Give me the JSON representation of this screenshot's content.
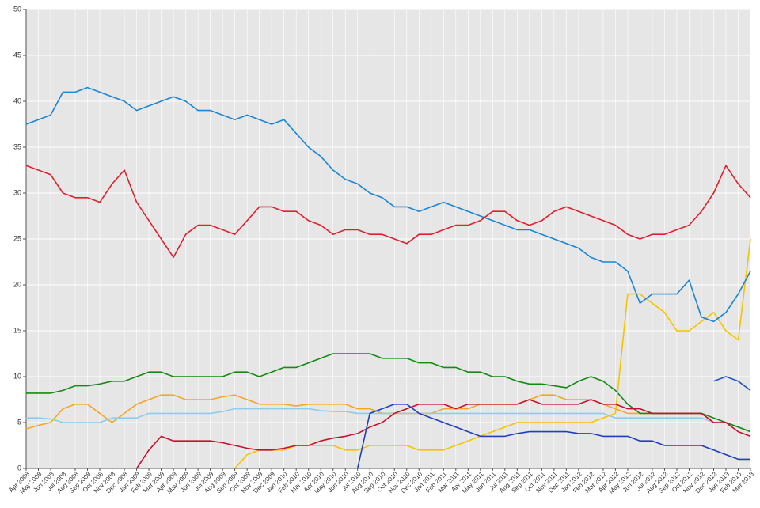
{
  "chart_data": {
    "type": "line",
    "categories": [
      "Apr 2008",
      "May 2008",
      "Jun 2008",
      "Jul 2008",
      "Aug 2008",
      "Sep 2008",
      "Oct 2008",
      "Nov 2008",
      "Dec 2008",
      "Jan 2009",
      "Feb 2009",
      "Mar 2009",
      "Apr 2009",
      "May 2009",
      "Jun 2009",
      "Jul 2009",
      "Aug 2009",
      "Sep 2009",
      "Oct 2009",
      "Nov 2009",
      "Dec 2009",
      "Jan 2010",
      "Feb 2010",
      "Mar 2010",
      "Apr 2010",
      "May 2010",
      "Jun 2010",
      "Jul 2010",
      "Aug 2010",
      "Sep 2010",
      "Oct 2010",
      "Nov 2010",
      "Dec 2010",
      "Jan 2011",
      "Feb 2011",
      "Mar 2011",
      "Apr 2011",
      "May 2011",
      "Jun 2011",
      "Jul 2011",
      "Aug 2011",
      "Sep 2011",
      "Oct 2011",
      "Nov 2011",
      "Dec 2011",
      "Jan 2012",
      "Feb 2012",
      "Mar 2012",
      "Apr 2012",
      "May 2012",
      "Jun 2012",
      "Jul 2012",
      "Aug 2012",
      "Sep 2012",
      "Oct 2012",
      "Nov 2012",
      "Dec 2012",
      "Jan 2013",
      "Feb 2013",
      "Mar 2013"
    ],
    "series": [
      {
        "color": "#f5a623",
        "values": [
          4.3,
          4.7,
          5,
          6.5,
          7,
          7,
          6,
          5,
          6,
          7,
          7.5,
          8,
          8,
          7.5,
          7.5,
          7.5,
          7.8,
          8,
          7.5,
          7,
          7,
          7,
          6.8,
          7,
          7,
          7,
          7,
          6.5,
          6.5,
          6,
          6,
          6,
          6,
          6,
          6.5,
          6.5,
          6.5,
          7,
          7,
          7,
          7,
          7.5,
          8,
          8,
          7.5,
          7.5,
          7.5,
          7,
          6.5,
          6,
          6,
          6,
          6,
          6,
          6,
          6,
          5,
          5,
          4.5,
          4
        ]
      },
      {
        "color": "#8ecbef",
        "values": [
          5.5,
          5.5,
          5.4,
          5,
          5,
          5,
          5,
          5.5,
          5.5,
          5.5,
          6,
          6,
          6,
          6,
          6,
          6,
          6.2,
          6.5,
          6.5,
          6.5,
          6.5,
          6.5,
          6.5,
          6.5,
          6.3,
          6.2,
          6.2,
          6,
          6,
          6,
          6,
          6,
          6,
          6,
          6,
          6,
          6,
          6,
          6,
          6,
          6,
          6,
          6,
          6,
          6,
          6,
          6,
          6,
          5.5,
          5.5,
          5.5,
          5.5,
          5.5,
          5.5,
          5.5,
          5.5,
          5,
          5,
          4.5,
          4
        ]
      },
      {
        "color": "#138a13",
        "values": [
          8.2,
          8.2,
          8.2,
          8.5,
          9,
          9,
          9.2,
          9.5,
          9.5,
          10,
          10.5,
          10.5,
          10,
          10,
          10,
          10,
          10,
          10.5,
          10.5,
          10,
          10.5,
          11,
          11,
          11.5,
          12,
          12.5,
          12.5,
          12.5,
          12.5,
          12,
          12,
          12,
          11.5,
          11.5,
          11,
          11,
          10.5,
          10.5,
          10,
          10,
          9.5,
          9.2,
          9.2,
          9,
          8.8,
          9.5,
          10,
          9.5,
          8.5,
          7,
          6,
          6,
          6,
          6,
          6,
          6,
          5.5,
          5,
          4.5,
          4
        ]
      },
      {
        "color": "#f5c400",
        "values": [
          null,
          null,
          null,
          null,
          null,
          null,
          null,
          null,
          null,
          null,
          null,
          null,
          null,
          null,
          null,
          null,
          null,
          0,
          1.5,
          2,
          2,
          2,
          2.5,
          2.5,
          2.5,
          2.5,
          2,
          2,
          2.5,
          2.5,
          2.5,
          2.5,
          2,
          2,
          2,
          2.5,
          3,
          3.5,
          4,
          4.5,
          5,
          5,
          5,
          5,
          5,
          5,
          5,
          5.5,
          6,
          19,
          19,
          18,
          17,
          15,
          15,
          16,
          17,
          15,
          14,
          25
        ]
      },
      {
        "color": "#c8102e",
        "values": [
          null,
          null,
          null,
          null,
          null,
          null,
          null,
          null,
          null,
          0,
          2,
          3.5,
          3,
          3,
          3,
          3,
          2.8,
          2.5,
          2.2,
          2,
          2,
          2.2,
          2.5,
          2.5,
          3,
          3.3,
          3.5,
          3.8,
          4.5,
          5,
          6,
          6.5,
          7,
          7,
          7,
          6.5,
          7,
          7,
          7,
          7,
          7,
          7.5,
          7,
          7,
          7,
          7,
          7.5,
          7,
          7,
          6.5,
          6.5,
          6,
          6,
          6,
          6,
          6,
          5,
          5,
          4,
          3.5
        ]
      },
      {
        "color": "#1f3fbf",
        "values": [
          null,
          null,
          null,
          null,
          null,
          null,
          null,
          null,
          null,
          null,
          null,
          null,
          null,
          null,
          null,
          null,
          null,
          null,
          null,
          null,
          null,
          null,
          null,
          null,
          null,
          null,
          null,
          0,
          6,
          6.5,
          7,
          7,
          6,
          5.5,
          5,
          4.5,
          4,
          3.5,
          3.5,
          3.5,
          3.8,
          4,
          4,
          4,
          4,
          3.8,
          3.8,
          3.5,
          3.5,
          3.5,
          3,
          3,
          2.5,
          2.5,
          2.5,
          2.5,
          2,
          1.5,
          1,
          1
        ]
      },
      {
        "color": "#2255cc",
        "values": [
          null,
          null,
          null,
          null,
          null,
          null,
          null,
          null,
          null,
          null,
          null,
          null,
          null,
          null,
          null,
          null,
          null,
          null,
          null,
          null,
          null,
          null,
          null,
          null,
          null,
          null,
          null,
          null,
          null,
          null,
          null,
          null,
          null,
          null,
          null,
          null,
          null,
          null,
          null,
          null,
          null,
          null,
          null,
          null,
          null,
          null,
          null,
          null,
          null,
          null,
          null,
          null,
          null,
          null,
          null,
          null,
          9.5,
          10,
          9.5,
          8.5
        ]
      },
      {
        "color": "#1a85d6",
        "values": [
          37.5,
          38,
          38.5,
          41,
          41,
          41.5,
          41,
          40.5,
          40,
          39,
          39.5,
          40,
          40.5,
          40,
          39,
          39,
          38.5,
          38,
          38.5,
          38,
          37.5,
          38,
          36.5,
          35,
          34,
          32.5,
          31.5,
          31,
          30,
          29.5,
          28.5,
          28.5,
          28,
          28.5,
          29,
          28.5,
          28,
          27.5,
          27,
          26.5,
          26,
          26,
          25.5,
          25,
          24.5,
          24,
          23,
          22.5,
          22.5,
          21.5,
          18,
          19,
          19,
          19,
          20.5,
          16.5,
          16,
          17,
          19,
          21.5
        ]
      },
      {
        "color": "#e0202e",
        "values": [
          33,
          32.5,
          32,
          30,
          29.5,
          29.5,
          29,
          31,
          32.5,
          29,
          27,
          25,
          23,
          25.5,
          26.5,
          26.5,
          26,
          25.5,
          27,
          28.5,
          28.5,
          28,
          28,
          27,
          26.5,
          25.5,
          26,
          26,
          25.5,
          25.5,
          25,
          24.5,
          25.5,
          25.5,
          26,
          26.5,
          26.5,
          27,
          28,
          28,
          27,
          26.5,
          27,
          28,
          28.5,
          28,
          27.5,
          27,
          26.5,
          25.5,
          25,
          25.5,
          25.5,
          26,
          26.5,
          28,
          30,
          33,
          31,
          29.5
        ]
      }
    ],
    "ylim": [
      0,
      50
    ],
    "yticks": [
      0,
      5,
      10,
      15,
      20,
      25,
      30,
      35,
      40,
      45,
      50
    ],
    "grid": true
  }
}
